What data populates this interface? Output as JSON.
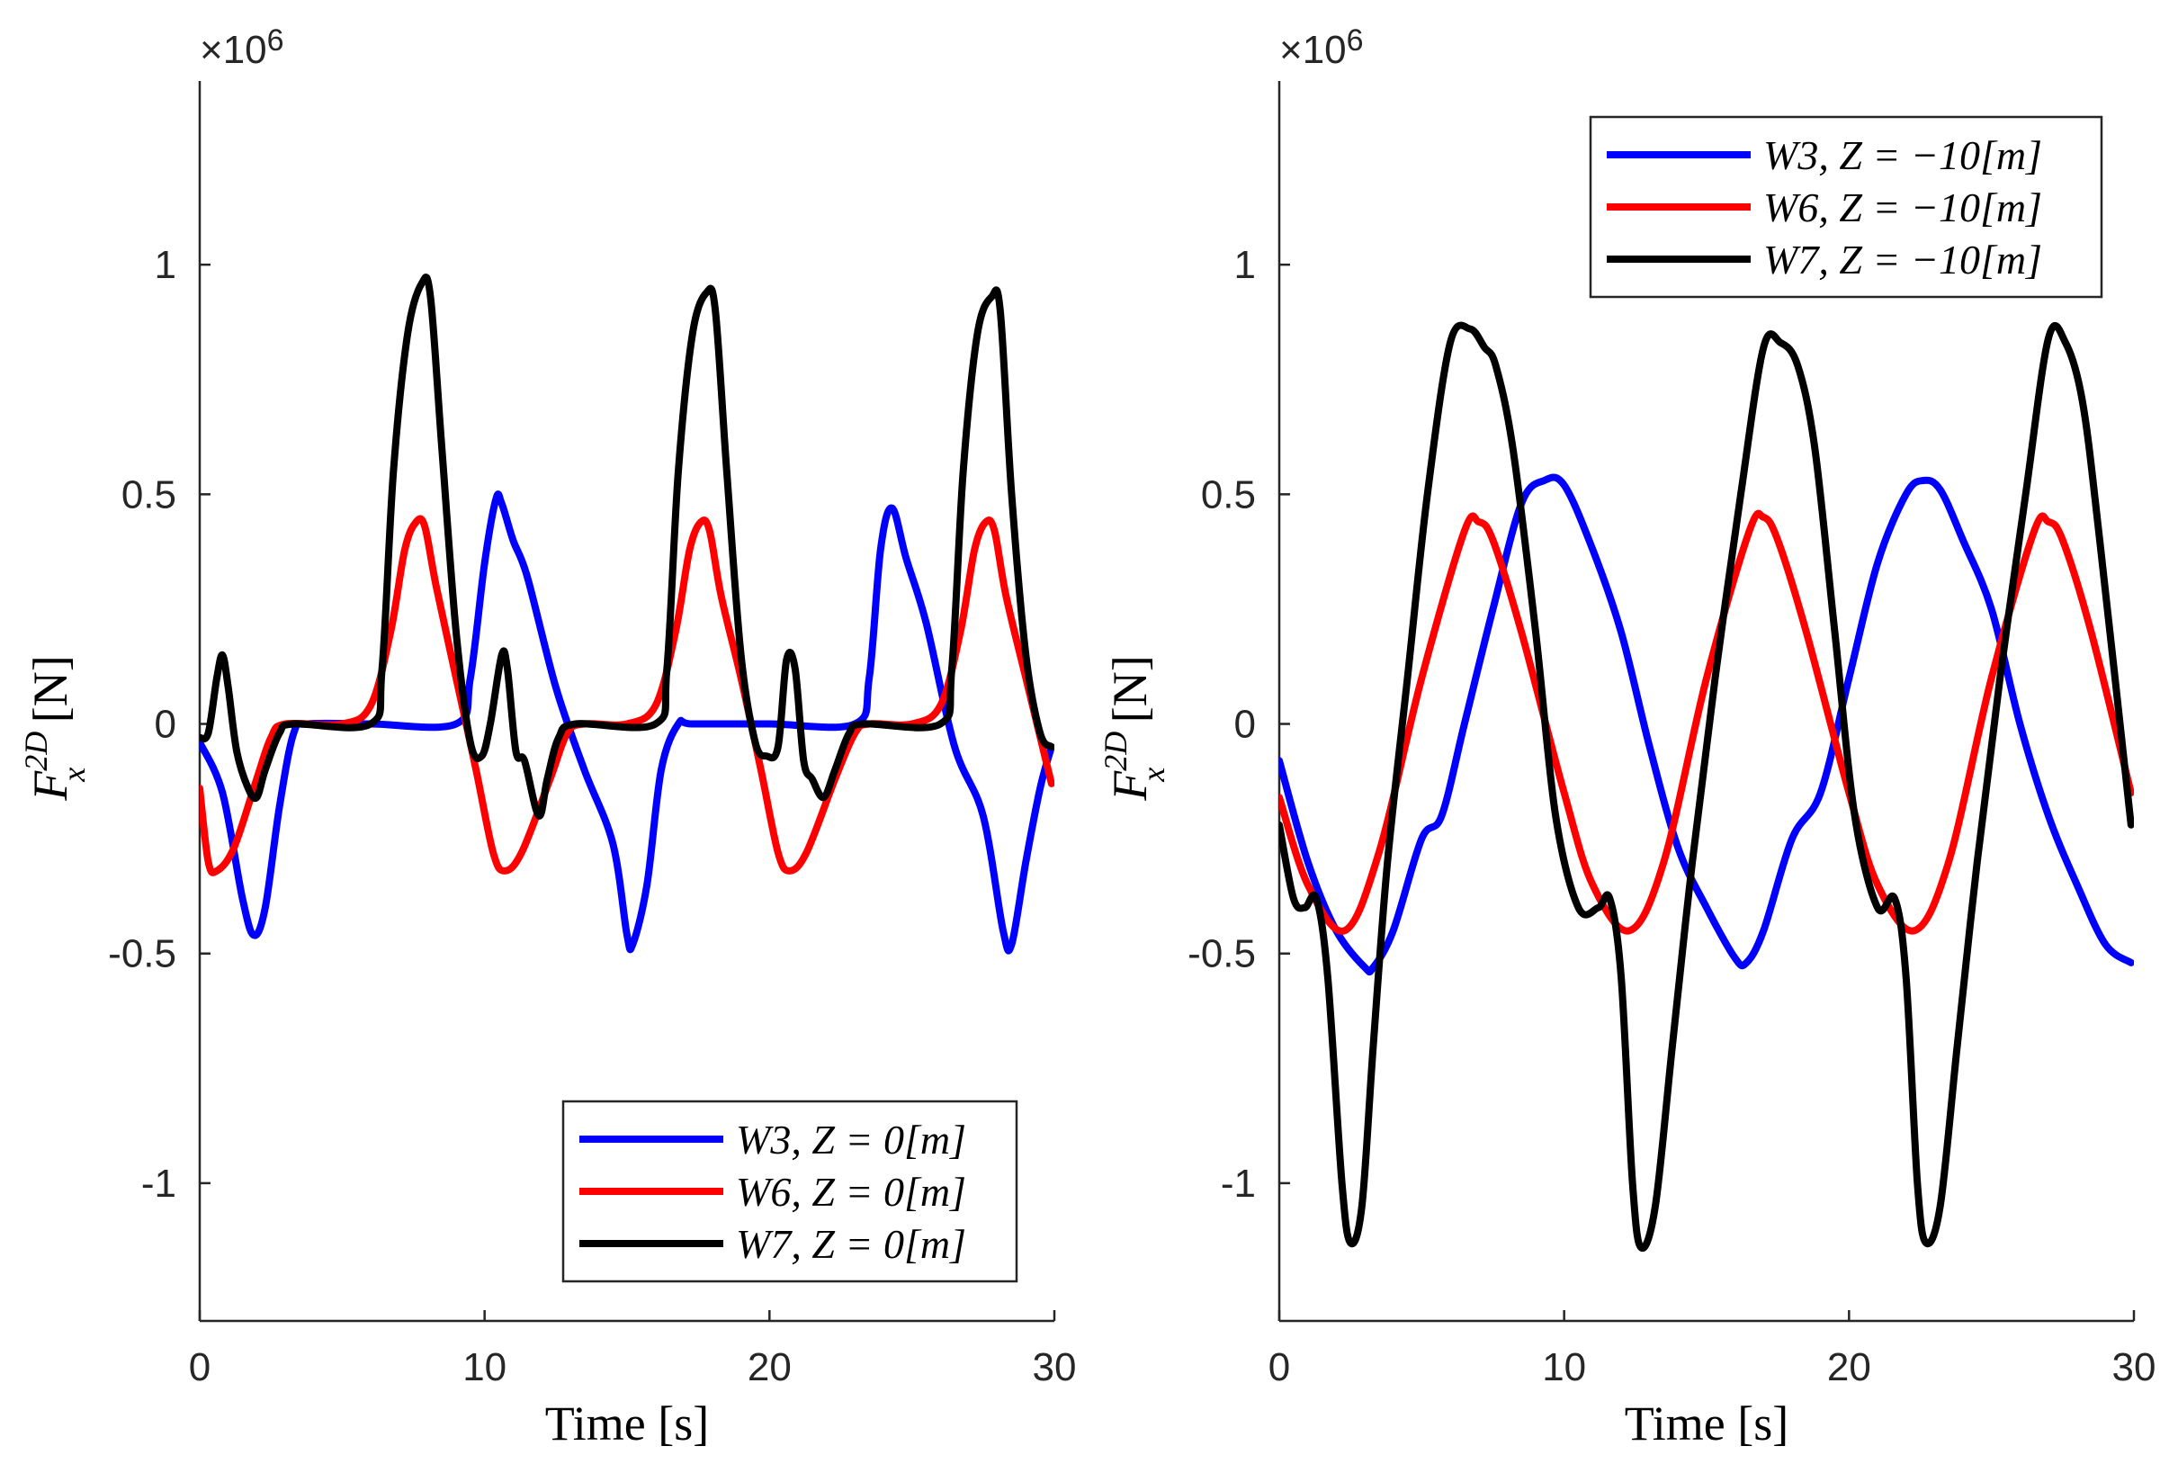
{
  "chart_data": [
    {
      "type": "line",
      "xlabel": "Time [s]",
      "ylabel": "F_x^{2D} [N]",
      "ylabel_main": "F",
      "ylabel_sub": "x",
      "ylabel_sup": "2D",
      "ylabel_unit": "[N]",
      "multiplier": "×10^6",
      "multiplier_base": "×10",
      "multiplier_exp": "6",
      "xlim": [
        0,
        30
      ],
      "ylim": [
        -1.3,
        1.4
      ],
      "xticks": [
        0,
        10,
        20,
        30
      ],
      "xtick_labels": [
        "0",
        "10",
        "20",
        "30"
      ],
      "yticks": [
        -1,
        -0.5,
        0,
        0.5,
        1
      ],
      "ytick_labels": [
        "-1",
        "-0.5",
        "0",
        "0.5",
        "1"
      ],
      "legend_position": "bottom-right",
      "series": [
        {
          "name": "W3, Z = 0[m]",
          "color": "#0000ff",
          "x": [
            0,
            0.8,
            1.5,
            1.9,
            2.3,
            2.8,
            3.3,
            3.8,
            6,
            9,
            9.5,
            10,
            10.4,
            10.6,
            11,
            11.5,
            12.5,
            13.5,
            14.5,
            15,
            15.2,
            15.7,
            16.2,
            16.8,
            17.3,
            20,
            23,
            23.5,
            23.9,
            24.3,
            24.8,
            25.5,
            26.5,
            27.5,
            28.2,
            28.5,
            29,
            29.5,
            29.9
          ],
          "values": [
            -0.04,
            -0.15,
            -0.38,
            -0.46,
            -0.4,
            -0.18,
            -0.02,
            0,
            0,
            0,
            0.1,
            0.35,
            0.49,
            0.48,
            0.4,
            0.32,
            0.08,
            -0.1,
            -0.26,
            -0.46,
            -0.48,
            -0.35,
            -0.1,
            0,
            0,
            0,
            0,
            0.1,
            0.38,
            0.47,
            0.36,
            0.22,
            -0.05,
            -0.2,
            -0.45,
            -0.48,
            -0.3,
            -0.14,
            -0.05
          ]
        },
        {
          "name": "W6, Z = 0[m]",
          "color": "#ff0000",
          "x": [
            0,
            0.3,
            0.6,
            1.2,
            2.0,
            2.5,
            3.0,
            5.0,
            6.0,
            6.7,
            7.2,
            7.6,
            7.9,
            8.3,
            9.0,
            9.7,
            10.3,
            10.7,
            11.3,
            12.3,
            12.9,
            13.5,
            15.0,
            16.0,
            16.7,
            17.2,
            17.6,
            17.9,
            18.3,
            19.0,
            19.7,
            20.3,
            20.7,
            21.3,
            22.3,
            23.0,
            23.5,
            25.0,
            26.0,
            26.7,
            27.2,
            27.6,
            27.9,
            28.3,
            29.0,
            29.9
          ],
          "values": [
            -0.14,
            -0.3,
            -0.32,
            -0.27,
            -0.12,
            -0.03,
            0,
            0,
            0.04,
            0.2,
            0.38,
            0.44,
            0.43,
            0.3,
            0.1,
            -0.1,
            -0.28,
            -0.32,
            -0.28,
            -0.12,
            -0.02,
            0,
            0,
            0.04,
            0.2,
            0.38,
            0.44,
            0.42,
            0.28,
            0.1,
            -0.1,
            -0.28,
            -0.32,
            -0.28,
            -0.12,
            -0.02,
            0,
            0,
            0.04,
            0.2,
            0.38,
            0.44,
            0.42,
            0.28,
            0.1,
            -0.13
          ]
        },
        {
          "name": "W7, Z = 0[m]",
          "color": "#000000",
          "x": [
            0,
            0.3,
            0.6,
            0.8,
            1.0,
            1.3,
            1.7,
            2.0,
            2.3,
            2.8,
            3.3,
            6.0,
            6.4,
            6.8,
            7.3,
            7.8,
            8.1,
            8.5,
            9.0,
            9.5,
            9.9,
            10.2,
            10.6,
            10.8,
            11.1,
            11.4,
            11.9,
            12.2,
            12.6,
            13.2,
            16.0,
            16.4,
            16.8,
            17.3,
            17.8,
            18.1,
            18.5,
            19.0,
            19.5,
            19.9,
            20.3,
            20.6,
            20.9,
            21.2,
            21.5,
            21.9,
            22.3,
            22.8,
            23.3,
            26.0,
            26.4,
            26.8,
            27.3,
            27.8,
            28.1,
            28.5,
            29.0,
            29.5,
            29.9
          ],
          "values": [
            -0.03,
            -0.02,
            0.1,
            0.15,
            0.08,
            -0.06,
            -0.14,
            -0.16,
            -0.1,
            -0.02,
            0,
            0,
            0.12,
            0.55,
            0.85,
            0.96,
            0.93,
            0.6,
            0.2,
            -0.04,
            -0.07,
            0,
            0.15,
            0.12,
            -0.06,
            -0.08,
            -0.2,
            -0.12,
            -0.03,
            0,
            0,
            0.12,
            0.55,
            0.85,
            0.94,
            0.9,
            0.55,
            0.15,
            -0.04,
            -0.07,
            -0.05,
            0.14,
            0.12,
            -0.08,
            -0.12,
            -0.16,
            -0.1,
            -0.02,
            0,
            0,
            0.12,
            0.55,
            0.85,
            0.93,
            0.9,
            0.5,
            0.15,
            -0.02,
            -0.05
          ]
        }
      ]
    },
    {
      "type": "line",
      "xlabel": "Time [s]",
      "ylabel": "F_x^{2D} [N]",
      "ylabel_main": "F",
      "ylabel_sub": "x",
      "ylabel_sup": "2D",
      "ylabel_unit": "[N]",
      "multiplier": "×10^6",
      "multiplier_base": "×10",
      "multiplier_exp": "6",
      "xlim": [
        0,
        30
      ],
      "ylim": [
        -1.3,
        1.4
      ],
      "xticks": [
        0,
        10,
        20,
        30
      ],
      "xtick_labels": [
        "0",
        "10",
        "20",
        "30"
      ],
      "yticks": [
        -1,
        -0.5,
        0,
        0.5,
        1
      ],
      "ytick_labels": [
        "-1",
        "-0.5",
        "0",
        "0.5",
        "1"
      ],
      "legend_position": "top-right",
      "series": [
        {
          "name": "W3, Z = −10[m]",
          "color": "#0000ff",
          "x": [
            0,
            1,
            2,
            3,
            3.3,
            4,
            5,
            5.7,
            6.5,
            7.5,
            8.5,
            9.3,
            10,
            11,
            12,
            13,
            14,
            15,
            16,
            16.4,
            17,
            18,
            19,
            20,
            21,
            22,
            22.6,
            23.2,
            24,
            25,
            26,
            27,
            28,
            29,
            29.9
          ],
          "values": [
            -0.08,
            -0.3,
            -0.45,
            -0.53,
            -0.53,
            -0.45,
            -0.25,
            -0.2,
            0,
            0.25,
            0.48,
            0.53,
            0.52,
            0.38,
            0.2,
            -0.05,
            -0.27,
            -0.4,
            -0.51,
            -0.52,
            -0.45,
            -0.25,
            -0.15,
            0.1,
            0.35,
            0.5,
            0.53,
            0.51,
            0.4,
            0.25,
            0.0,
            -0.2,
            -0.35,
            -0.48,
            -0.52
          ]
        },
        {
          "name": "W6, Z = −10[m]",
          "color": "#ff0000",
          "x": [
            0,
            1,
            2.3,
            3.5,
            5,
            6.5,
            7.0,
            7.5,
            8.5,
            10,
            11,
            12.3,
            13.5,
            15,
            16.5,
            17.0,
            17.5,
            18.5,
            20,
            21,
            22.3,
            23.5,
            25,
            26.5,
            27.0,
            27.5,
            28.5,
            29.9
          ],
          "values": [
            -0.16,
            -0.35,
            -0.45,
            -0.28,
            0.1,
            0.42,
            0.44,
            0.4,
            0.2,
            -0.15,
            -0.35,
            -0.45,
            -0.3,
            0.1,
            0.42,
            0.45,
            0.4,
            0.2,
            -0.15,
            -0.35,
            -0.45,
            -0.3,
            0.1,
            0.42,
            0.44,
            0.4,
            0.2,
            -0.15
          ]
        },
        {
          "name": "W7, Z = −10[m]",
          "color": "#000000",
          "x": [
            0,
            0.5,
            0.9,
            1.3,
            1.7,
            2.2,
            2.5,
            2.9,
            3.3,
            3.8,
            4.5,
            5.2,
            6.0,
            6.7,
            7.2,
            7.6,
            8.2,
            9.0,
            9.7,
            10.5,
            11.2,
            11.6,
            12.0,
            12.4,
            12.7,
            13.2,
            13.8,
            14.5,
            15.3,
            16.2,
            17.0,
            17.6,
            18.2,
            18.8,
            19.5,
            20.2,
            21.0,
            21.6,
            22.0,
            22.4,
            22.7,
            23.2,
            23.8,
            24.5,
            25.3,
            26.2,
            27.0,
            27.6,
            28.2,
            28.8,
            29.9
          ],
          "values": [
            -0.22,
            -0.38,
            -0.4,
            -0.38,
            -0.55,
            -1.0,
            -1.13,
            -1.05,
            -0.7,
            -0.3,
            0.1,
            0.5,
            0.83,
            0.86,
            0.82,
            0.78,
            0.6,
            0.2,
            -0.2,
            -0.4,
            -0.4,
            -0.38,
            -0.55,
            -1.0,
            -1.14,
            -1.05,
            -0.7,
            -0.3,
            0.1,
            0.5,
            0.82,
            0.83,
            0.78,
            0.6,
            0.2,
            -0.2,
            -0.4,
            -0.38,
            -0.55,
            -1.0,
            -1.13,
            -1.05,
            -0.7,
            -0.3,
            0.1,
            0.5,
            0.84,
            0.83,
            0.7,
            0.4,
            -0.22
          ]
        }
      ]
    }
  ]
}
